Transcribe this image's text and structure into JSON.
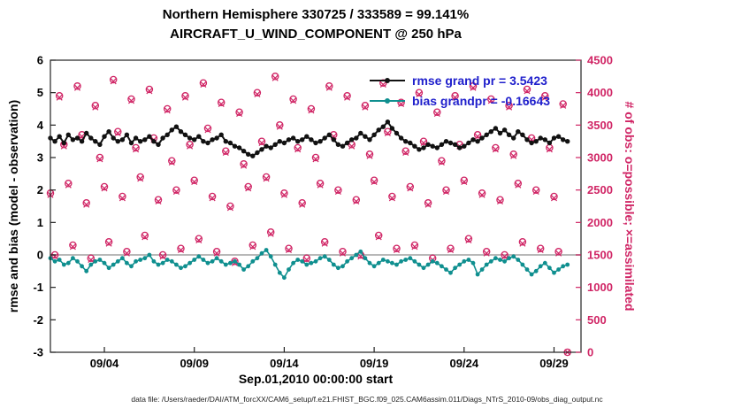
{
  "figure": {
    "title_line1": "Northern Hemisphere 330725 / 333589 = 99.141%",
    "title_line2": "AIRCRAFT_U_WIND_COMPONENT @ 250 hPa",
    "xlabel": "Sep.01,2010 00:00:00 start",
    "ylabel_left": "rmse and bias (model - observation)",
    "ylabel_right": "# of obs: o=possible; ×=assimilated",
    "caption": "data file: /Users/raeder/DAI/ATM_forcXX/CAM6_setup/f.e21.FHIST_BGC.f09_025.CAM6assim.011/Diags_NTrS_2010-09/obs_diag_output.nc"
  },
  "legend": {
    "rmse_label": "rmse grand pr = 3.5423",
    "bias_label": "bias grandpr = -0.16643"
  },
  "colors": {
    "rmse": "#111111",
    "bias": "#0f8f8f",
    "obs": "#d02565",
    "legend_text": "#2020cc",
    "zero_line": "#b8b8b8",
    "axis": "#222222"
  },
  "chart_data": {
    "type": "line",
    "title": "Northern Hemisphere 330725 / 333589 = 99.141% | AIRCRAFT_U_WIND_COMPONENT @ 250 hPa",
    "xlabel": "Sep.01,2010 00:00:00 start",
    "ylabel_left": "rmse and bias (model - observation)",
    "ylabel_right": "# of obs: o=possible; ×=assimilated",
    "legend_position": "upper center-right, no box",
    "grid": false,
    "x_start_day": 1.0,
    "x_step_days": 0.25,
    "n_points": 116,
    "xlim_days": [
      1,
      30.5
    ],
    "x_ticks": [
      {
        "day": 4,
        "label": "09/04"
      },
      {
        "day": 9,
        "label": "09/09"
      },
      {
        "day": 14,
        "label": "09/14"
      },
      {
        "day": 19,
        "label": "09/19"
      },
      {
        "day": 24,
        "label": "09/24"
      },
      {
        "day": 29,
        "label": "09/29"
      }
    ],
    "ylim_left": [
      -3,
      6
    ],
    "yticks_left": [
      -3,
      -2,
      -1,
      0,
      1,
      2,
      3,
      4,
      5,
      6
    ],
    "ylim_right": [
      0,
      4500
    ],
    "yticks_right": [
      0,
      500,
      1000,
      1500,
      2000,
      2500,
      3000,
      3500,
      4000,
      4500
    ],
    "rmse_grand_mean": 3.5423,
    "bias_grand_mean": -0.16643,
    "obs_possible_total": 333589,
    "obs_assimilated_total": 330725,
    "obs_assimilated_pct": 99.141,
    "series": [
      {
        "name": "rmse",
        "axis": "left",
        "marker": "dot",
        "values": [
          3.6,
          3.5,
          3.65,
          3.45,
          3.7,
          3.55,
          3.6,
          3.5,
          3.75,
          3.6,
          3.5,
          3.4,
          3.65,
          3.8,
          3.6,
          3.5,
          3.55,
          3.7,
          3.45,
          3.6,
          3.5,
          3.55,
          3.65,
          3.5,
          3.4,
          3.6,
          3.7,
          3.85,
          3.95,
          3.8,
          3.7,
          3.6,
          3.55,
          3.65,
          3.5,
          3.45,
          3.55,
          3.6,
          3.7,
          3.5,
          3.45,
          3.35,
          3.3,
          3.2,
          3.1,
          3.05,
          3.15,
          3.25,
          3.35,
          3.3,
          3.4,
          3.5,
          3.45,
          3.55,
          3.6,
          3.5,
          3.55,
          3.65,
          3.55,
          3.45,
          3.5,
          3.6,
          3.7,
          3.55,
          3.4,
          3.35,
          3.45,
          3.55,
          3.6,
          3.75,
          3.65,
          3.55,
          3.7,
          3.85,
          3.95,
          4.1,
          3.9,
          3.75,
          3.6,
          3.5,
          3.45,
          3.35,
          3.25,
          3.3,
          3.4,
          3.35,
          3.3,
          3.4,
          3.5,
          3.45,
          3.4,
          3.3,
          3.35,
          3.45,
          3.55,
          3.5,
          3.6,
          3.7,
          3.8,
          3.9,
          3.75,
          3.85,
          3.7,
          3.6,
          3.8,
          3.7,
          3.55,
          3.45,
          3.5,
          3.6,
          3.55,
          3.45,
          3.6,
          3.65,
          3.55,
          3.5
        ]
      },
      {
        "name": "bias",
        "axis": "left",
        "marker": "dot",
        "values": [
          -0.1,
          -0.2,
          -0.15,
          -0.3,
          -0.25,
          -0.1,
          -0.2,
          -0.35,
          -0.5,
          -0.3,
          -0.2,
          -0.15,
          -0.25,
          -0.4,
          -0.3,
          -0.2,
          -0.1,
          -0.25,
          -0.35,
          -0.2,
          -0.15,
          -0.1,
          0.0,
          -0.2,
          -0.3,
          -0.25,
          -0.15,
          -0.2,
          -0.3,
          -0.4,
          -0.35,
          -0.25,
          -0.15,
          -0.05,
          -0.15,
          -0.25,
          -0.2,
          -0.1,
          -0.2,
          -0.3,
          -0.25,
          -0.2,
          -0.3,
          -0.45,
          -0.35,
          -0.2,
          -0.1,
          0.05,
          0.15,
          -0.05,
          -0.3,
          -0.55,
          -0.7,
          -0.45,
          -0.25,
          -0.15,
          -0.2,
          -0.3,
          -0.25,
          -0.2,
          -0.1,
          -0.05,
          -0.15,
          -0.3,
          -0.4,
          -0.35,
          -0.2,
          -0.1,
          0.0,
          0.1,
          -0.1,
          -0.25,
          -0.35,
          -0.25,
          -0.15,
          -0.2,
          -0.25,
          -0.3,
          -0.2,
          -0.15,
          -0.1,
          -0.2,
          -0.3,
          -0.4,
          -0.3,
          -0.2,
          -0.25,
          -0.35,
          -0.45,
          -0.55,
          -0.4,
          -0.3,
          -0.2,
          -0.15,
          -0.25,
          -0.6,
          -0.45,
          -0.3,
          -0.2,
          -0.1,
          -0.15,
          -0.2,
          -0.1,
          -0.05,
          -0.15,
          -0.3,
          -0.45,
          -0.6,
          -0.5,
          -0.35,
          -0.25,
          -0.4,
          -0.55,
          -0.45,
          -0.35,
          -0.3
        ]
      },
      {
        "name": "possible",
        "axis": "right",
        "marker": "o",
        "values": [
          2450,
          1500,
          3950,
          3200,
          2600,
          1650,
          4100,
          3350,
          2300,
          1450,
          3800,
          3000,
          2550,
          1700,
          4200,
          3400,
          2400,
          1550,
          3900,
          3150,
          2700,
          1800,
          4050,
          3300,
          2350,
          1500,
          3750,
          2950,
          2500,
          1600,
          3950,
          3200,
          2650,
          1750,
          4150,
          3450,
          2400,
          1550,
          3850,
          3100,
          2250,
          1400,
          3700,
          2900,
          2550,
          1650,
          4000,
          3250,
          2700,
          1850,
          4250,
          3500,
          2450,
          1600,
          3900,
          3150,
          2300,
          1450,
          3750,
          3000,
          2600,
          1700,
          4100,
          3350,
          2500,
          1550,
          3950,
          3200,
          2350,
          1500,
          3800,
          3050,
          2650,
          1800,
          4150,
          3400,
          2400,
          1600,
          3850,
          3100,
          2550,
          1650,
          4000,
          3250,
          2300,
          1450,
          3700,
          2950,
          2500,
          1600,
          3950,
          3200,
          2650,
          1750,
          4100,
          3350,
          2450,
          1550,
          3900,
          3150,
          2350,
          1500,
          3800,
          3050,
          2600,
          1700,
          4050,
          3300,
          2500,
          1600,
          3950,
          3150,
          2400,
          1550,
          3825,
          0
        ]
      },
      {
        "name": "assimilated",
        "axis": "right",
        "marker": "x",
        "values": [
          2425,
          1475,
          3925,
          3175,
          2575,
          1625,
          4075,
          3325,
          2275,
          1425,
          3775,
          2975,
          2525,
          1675,
          4175,
          3375,
          2375,
          1525,
          3875,
          3125,
          2675,
          1775,
          4025,
          3275,
          2325,
          1475,
          3725,
          2925,
          2475,
          1575,
          3925,
          3175,
          2625,
          1725,
          4125,
          3425,
          2375,
          1525,
          3825,
          3075,
          2225,
          1375,
          3675,
          2875,
          2525,
          1625,
          3975,
          3225,
          2675,
          1825,
          4225,
          3475,
          2425,
          1575,
          3875,
          3125,
          2275,
          1425,
          3725,
          2975,
          2575,
          1675,
          4075,
          3325,
          2475,
          1525,
          3925,
          3175,
          2325,
          1475,
          3775,
          3025,
          2625,
          1775,
          4125,
          3375,
          2375,
          1575,
          3825,
          3075,
          2525,
          1625,
          3975,
          3225,
          2275,
          1425,
          3675,
          2925,
          2475,
          1575,
          3925,
          3175,
          2625,
          1725,
          4075,
          3325,
          2425,
          1525,
          3875,
          3125,
          2325,
          1475,
          3775,
          3025,
          2575,
          1675,
          4025,
          3275,
          2475,
          1575,
          3925,
          3125,
          2375,
          1525,
          3800,
          0
        ]
      }
    ]
  }
}
